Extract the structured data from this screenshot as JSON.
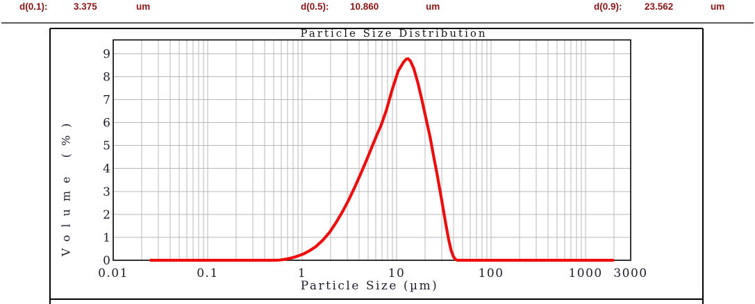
{
  "header": {
    "stats": [
      {
        "label": "d(0.1):",
        "value": "3.375",
        "unit": "um"
      },
      {
        "label": "d(0.5):",
        "value": "10.860",
        "unit": "um"
      },
      {
        "label": "d(0.9):",
        "value": "23.562",
        "unit": "um"
      }
    ],
    "text_color": "#8a1515",
    "divider_color": "#5a5a5a"
  },
  "chart_data": {
    "type": "line",
    "title": "Particle Size Distribution",
    "xlabel": "Particle Size (µm)",
    "ylabel": "Volume (%)",
    "x_scale": "log",
    "xlim": [
      0.01,
      3000
    ],
    "ylim": [
      0,
      9.6
    ],
    "x_ticks": [
      "0.01",
      "0.1",
      "1",
      "10",
      "100",
      "1000",
      "3000"
    ],
    "y_ticks": [
      0,
      1,
      2,
      3,
      4,
      5,
      6,
      7,
      8,
      9
    ],
    "grid": true,
    "grid_color": "#b8b8b8",
    "frame_color": "#000000",
    "axis_text_color": "#1c1c2a",
    "legend": "none",
    "series": [
      {
        "name": "Volume (%)",
        "color": "#ee0c0c",
        "points": [
          [
            0.025,
            0
          ],
          [
            0.04,
            0
          ],
          [
            0.07,
            0
          ],
          [
            0.12,
            0
          ],
          [
            0.2,
            0
          ],
          [
            0.35,
            0
          ],
          [
            0.5,
            0
          ],
          [
            0.58,
            0.01
          ],
          [
            0.65,
            0.04
          ],
          [
            0.73,
            0.08
          ],
          [
            0.82,
            0.13
          ],
          [
            0.92,
            0.2
          ],
          [
            1.05,
            0.29
          ],
          [
            1.2,
            0.42
          ],
          [
            1.4,
            0.6
          ],
          [
            1.65,
            0.87
          ],
          [
            1.95,
            1.22
          ],
          [
            2.3,
            1.66
          ],
          [
            2.7,
            2.15
          ],
          [
            3.1,
            2.62
          ],
          [
            3.6,
            3.18
          ],
          [
            4.2,
            3.8
          ],
          [
            4.9,
            4.45
          ],
          [
            5.7,
            5.12
          ],
          [
            6.2,
            5.48
          ],
          [
            6.8,
            5.85
          ],
          [
            7.8,
            6.55
          ],
          [
            9.0,
            7.45
          ],
          [
            10.4,
            8.25
          ],
          [
            11.8,
            8.62
          ],
          [
            12.6,
            8.76
          ],
          [
            13.2,
            8.78
          ],
          [
            14.0,
            8.68
          ],
          [
            15.2,
            8.35
          ],
          [
            16.8,
            7.72
          ],
          [
            18.6,
            6.95
          ],
          [
            20.5,
            6.15
          ],
          [
            22.5,
            5.4
          ],
          [
            24.6,
            4.55
          ],
          [
            26.8,
            3.75
          ],
          [
            29.0,
            2.95
          ],
          [
            31.2,
            2.2
          ],
          [
            33.4,
            1.5
          ],
          [
            35.6,
            0.88
          ],
          [
            37.8,
            0.42
          ],
          [
            40.0,
            0.15
          ],
          [
            42.0,
            0.04
          ],
          [
            44.0,
            0
          ],
          [
            55,
            0
          ],
          [
            80,
            0
          ],
          [
            150,
            0
          ],
          [
            400,
            0
          ],
          [
            1000,
            0
          ],
          [
            1950,
            0
          ]
        ]
      }
    ]
  }
}
